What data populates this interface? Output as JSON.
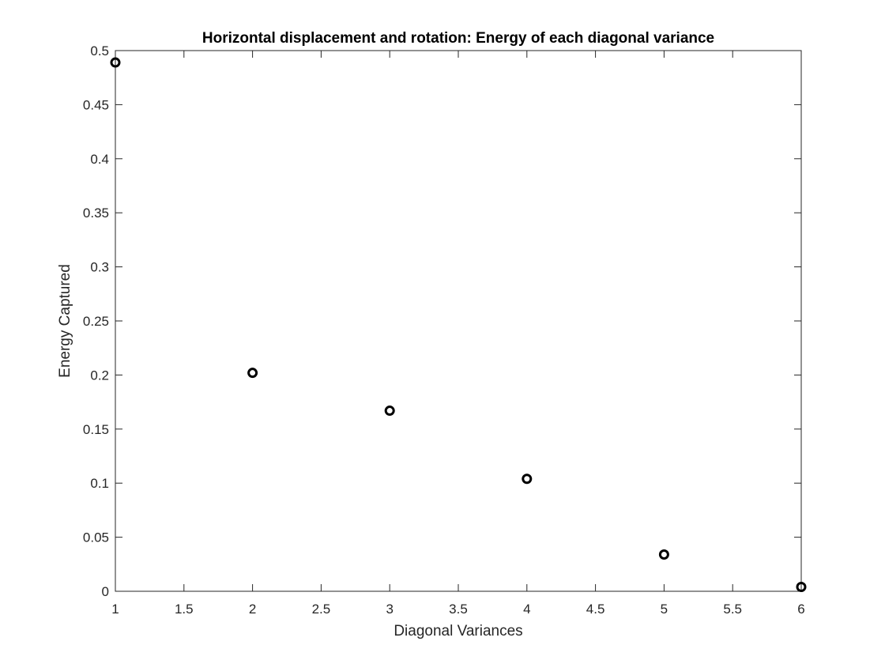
{
  "chart_data": {
    "type": "scatter",
    "title": "Horizontal displacement and rotation: Energy of each diagonal variance",
    "xlabel": "Diagonal Variances",
    "ylabel": "Energy Captured",
    "xlim": [
      1,
      6
    ],
    "ylim": [
      0,
      0.5
    ],
    "x_ticks": [
      "1",
      "1.5",
      "2",
      "2.5",
      "3",
      "3.5",
      "4",
      "4.5",
      "5",
      "5.5",
      "6"
    ],
    "y_ticks": [
      "0",
      "0.05",
      "0.1",
      "0.15",
      "0.2",
      "0.25",
      "0.3",
      "0.35",
      "0.4",
      "0.45",
      "0.5"
    ],
    "grid": false,
    "marker": "circle-open",
    "marker_color": "#000000",
    "series": [
      {
        "x": [
          1,
          2,
          3,
          4,
          5,
          6
        ],
        "y": [
          0.489,
          0.202,
          0.167,
          0.104,
          0.034,
          0.004
        ]
      }
    ]
  }
}
